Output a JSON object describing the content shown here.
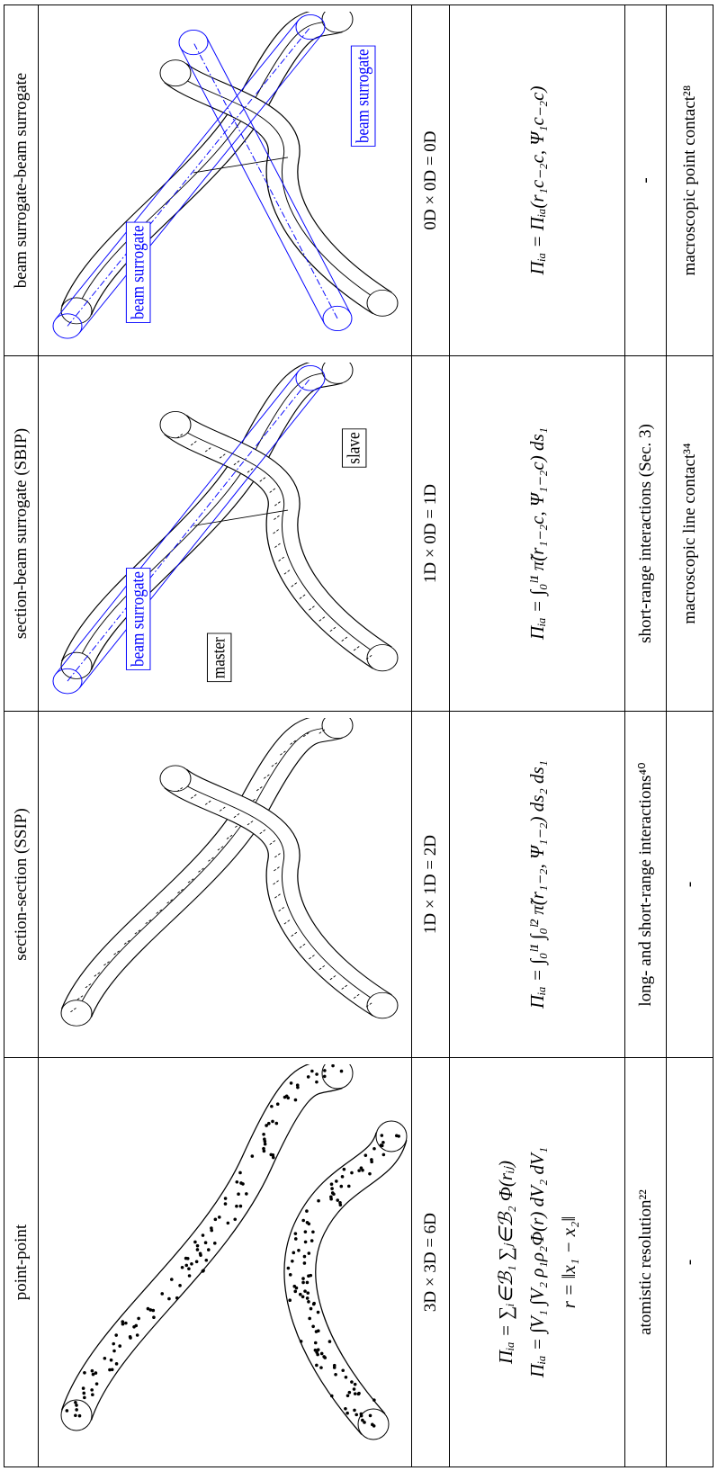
{
  "table": {
    "headers": [
      "point-point",
      "section-section (SSIP)",
      "section-beam surrogate (SBIP)",
      "beam surrogate-beam surrogate"
    ],
    "figure_labels": [
      [],
      [],
      [
        "beam surrogate",
        "master",
        "slave"
      ],
      [
        "beam surrogate",
        "beam surrogate"
      ]
    ],
    "dimensions": [
      "3D × 3D = 6D",
      "1D × 1D = 2D",
      "1D × 0D = 1D",
      "0D × 0D = 0D"
    ],
    "formulas": [
      [
        "Πᵢₐ = ∑ᵢ∈ℬ₁ ∑ⱼ∈ℬ₂ Φ(rᵢⱼ)",
        "Πᵢₐ = ∫V₁ ∫V₂ ρ₁ρ₂Φ(r) dV₂ dV₁",
        "r = ‖x₁ − x₂‖"
      ],
      [
        "Πᵢₐ = ∫₀ˡ¹ ∫₀ˡ² π̃(r₁₋₂, Ψ₁₋₂) ds₂ ds₁"
      ],
      [
        "Πᵢₐ = ∫₀ˡ¹ π̃(r₁₋₂c, Ψ₁₋₂c) ds₁"
      ],
      [
        "Πᵢₐ = Πᵢₐ(r₁c₋₂c, Ψ₁c₋₂c)"
      ]
    ],
    "interactions": [
      "atomistic resolution²²",
      "long- and short-range interactions⁴⁰",
      "short-range interactions (Sec. 3)",
      "-"
    ],
    "contacts": [
      "-",
      "-",
      "macroscopic line contact³⁴",
      "macroscopic point contact²⁸"
    ]
  }
}
